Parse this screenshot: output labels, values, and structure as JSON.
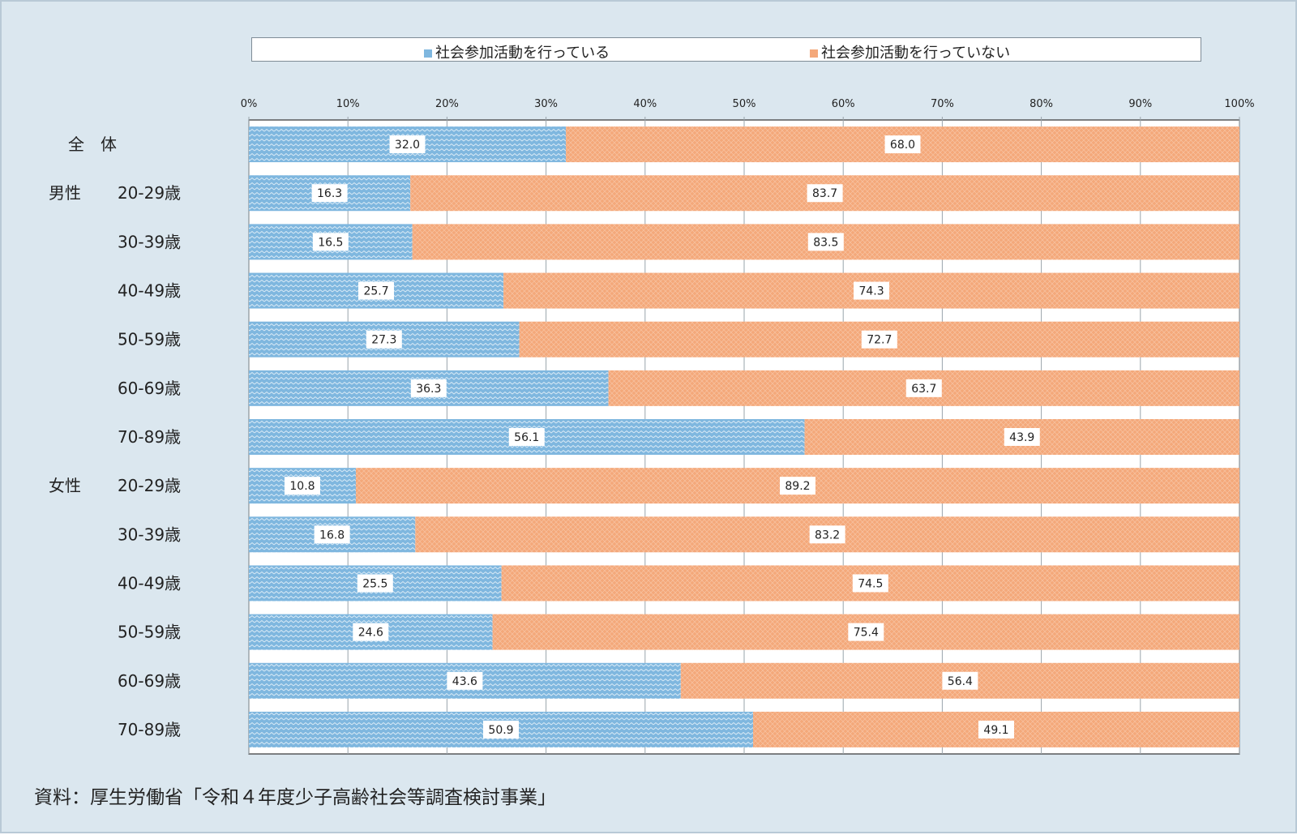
{
  "colors": {
    "participating": "#7fb7df",
    "not_participating": "#f4a87a"
  },
  "legend": {
    "participating": "社会参加活動を行っている",
    "not_participating": "社会参加活動を行っていない"
  },
  "source": "資料：厚生労働省「令和４年度少子高齢社会等調査検討事業」",
  "chart_data": {
    "type": "bar",
    "orientation": "horizontal",
    "stacked": true,
    "xlim": [
      0,
      100
    ],
    "x_ticks": [
      "0%",
      "10%",
      "20%",
      "30%",
      "40%",
      "50%",
      "60%",
      "70%",
      "80%",
      "90%",
      "100%"
    ],
    "categories": [
      {
        "group": "全　体",
        "age": ""
      },
      {
        "group": "男性",
        "age": "20-29歳"
      },
      {
        "group": "",
        "age": "30-39歳"
      },
      {
        "group": "",
        "age": "40-49歳"
      },
      {
        "group": "",
        "age": "50-59歳"
      },
      {
        "group": "",
        "age": "60-69歳"
      },
      {
        "group": "",
        "age": "70-89歳"
      },
      {
        "group": "女性",
        "age": "20-29歳"
      },
      {
        "group": "",
        "age": "30-39歳"
      },
      {
        "group": "",
        "age": "40-49歳"
      },
      {
        "group": "",
        "age": "50-59歳"
      },
      {
        "group": "",
        "age": "60-69歳"
      },
      {
        "group": "",
        "age": "70-89歳"
      }
    ],
    "series": [
      {
        "name": "社会参加活動を行っている",
        "values": [
          32.0,
          16.3,
          16.5,
          25.7,
          27.3,
          36.3,
          56.1,
          10.8,
          16.8,
          25.5,
          24.6,
          43.6,
          50.9
        ]
      },
      {
        "name": "社会参加活動を行っていない",
        "values": [
          68.0,
          83.7,
          83.5,
          74.3,
          72.7,
          63.7,
          43.9,
          89.2,
          83.2,
          74.5,
          75.4,
          56.4,
          49.1
        ]
      }
    ],
    "legend_position": "top",
    "grid": true
  }
}
